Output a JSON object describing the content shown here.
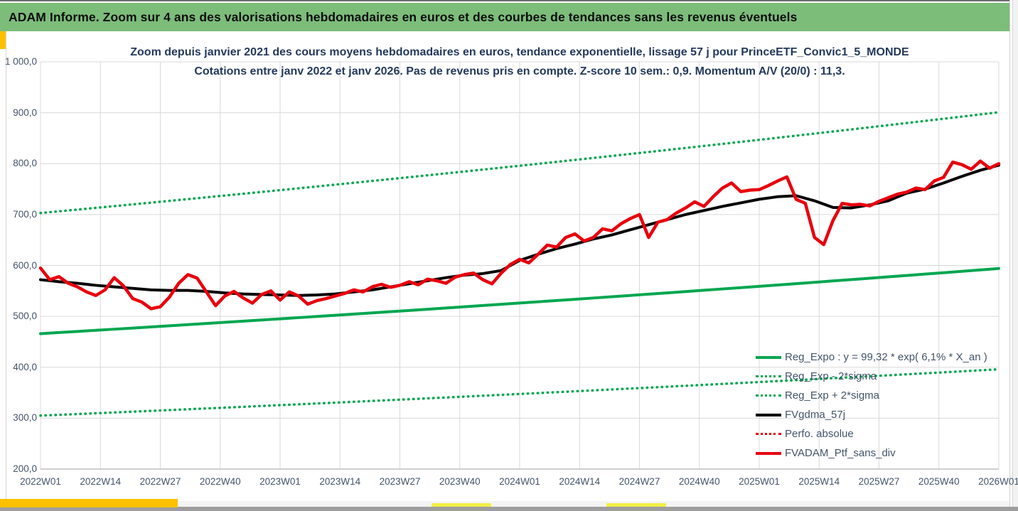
{
  "header": {
    "title": "ADAM Informe. Zoom sur 4 ans des valorisations hebdomadaires en euros et des courbes de tendances sans les revenus éventuels"
  },
  "colors": {
    "header_green": "#7cbd7a",
    "accent_yellow": "#ffc000",
    "highlight_yellow": "#f2ee45",
    "series_green": "#00a650",
    "series_red": "#e8000d",
    "series_black": "#000000",
    "gridline": "#d9d9d9",
    "axis_line": "#bfbfbf",
    "axis_text": "#44546a",
    "title_text": "#24395c"
  },
  "chart_data": {
    "type": "line",
    "title_line1": "Zoom depuis janvier 2021 des cours moyens hebdomadaires en euros, tendance exponentielle, lissage 57 j pour PrinceETF_Convic1_5_MONDE",
    "title_line2": "Cotations entre janv 2022 et janv 2026. Pas de revenus pris en compte. Z-score 10 sem.: 0,9. Momentum A/V (20/0) : 11,3.",
    "x_axis": {
      "tick_labels": [
        "2022W01",
        "2022W14",
        "2022W27",
        "2022W40",
        "2023W01",
        "2023W14",
        "2023W27",
        "2023W40",
        "2024W01",
        "2024W14",
        "2024W27",
        "2024W40",
        "2025W01",
        "2025W14",
        "2025W27",
        "2025W40",
        "2026W01"
      ],
      "weeks_per_tick": 13,
      "total_weeks": 208,
      "grid": true
    },
    "y_axis": {
      "min": 200,
      "max": 1000,
      "tick_step": 100,
      "tick_labels": [
        "1 000,0",
        "900,0",
        "800,0",
        "700,0",
        "600,0",
        "500,0",
        "400,0",
        "300,0",
        "200,0"
      ],
      "grid": true
    },
    "legend_position": "inside-bottom-right",
    "series": [
      {
        "name": "Reg_Expo : y = 99,32 * exp( 6,1% * X_an )",
        "style": "solid",
        "color": "#00a650",
        "width": 4,
        "points_w": [
          0,
          208
        ],
        "values": [
          466,
          594
        ]
      },
      {
        "name": "Reg_Exp - 2*sigma",
        "style": "dotted",
        "color": "#00a650",
        "width": 3.5,
        "points_w": [
          0,
          208
        ],
        "values": [
          305,
          396
        ]
      },
      {
        "name": "Reg_Exp + 2*sigma",
        "style": "dotted",
        "color": "#00a650",
        "width": 3.5,
        "points_w": [
          0,
          208
        ],
        "values": [
          703,
          901
        ]
      },
      {
        "name": "FVgdma_57j",
        "style": "solid",
        "color": "#000000",
        "width": 4,
        "step_w": 4,
        "values": [
          572,
          568,
          565,
          561,
          558,
          555,
          552,
          551,
          551,
          549,
          546,
          544,
          543,
          542,
          541,
          542,
          544,
          548,
          552,
          558,
          564,
          570,
          576,
          581,
          584,
          590,
          610,
          622,
          633,
          642,
          652,
          660,
          670,
          680,
          690,
          700,
          708,
          716,
          723,
          730,
          735,
          737,
          727,
          714,
          713,
          719,
          727,
          742,
          750,
          762,
          775,
          787,
          797
        ]
      },
      {
        "name": "Perfo. absolue",
        "style": "dotted",
        "color": "#e8000d",
        "width": 3.5,
        "legend_only": true,
        "values": []
      },
      {
        "name": "FVADAM_Ptf_sans_div",
        "style": "solid",
        "color": "#e8000d",
        "width": 4.5,
        "step_w": 2,
        "values": [
          595,
          572,
          578,
          565,
          558,
          548,
          541,
          552,
          576,
          560,
          535,
          528,
          515,
          519,
          538,
          565,
          582,
          575,
          548,
          521,
          540,
          549,
          536,
          526,
          543,
          550,
          532,
          548,
          540,
          524,
          531,
          535,
          540,
          545,
          552,
          548,
          558,
          563,
          557,
          561,
          568,
          562,
          573,
          570,
          565,
          577,
          582,
          585,
          572,
          564,
          585,
          602,
          612,
          605,
          622,
          640,
          636,
          655,
          662,
          648,
          655,
          672,
          668,
          682,
          692,
          700,
          655,
          685,
          690,
          703,
          713,
          725,
          716,
          735,
          752,
          762,
          745,
          748,
          749,
          757,
          766,
          774,
          730,
          722,
          655,
          641,
          688,
          722,
          719,
          720,
          717,
          726,
          733,
          740,
          744,
          752,
          749,
          766,
          773,
          803,
          798,
          789,
          805,
          791,
          800
        ]
      }
    ]
  }
}
